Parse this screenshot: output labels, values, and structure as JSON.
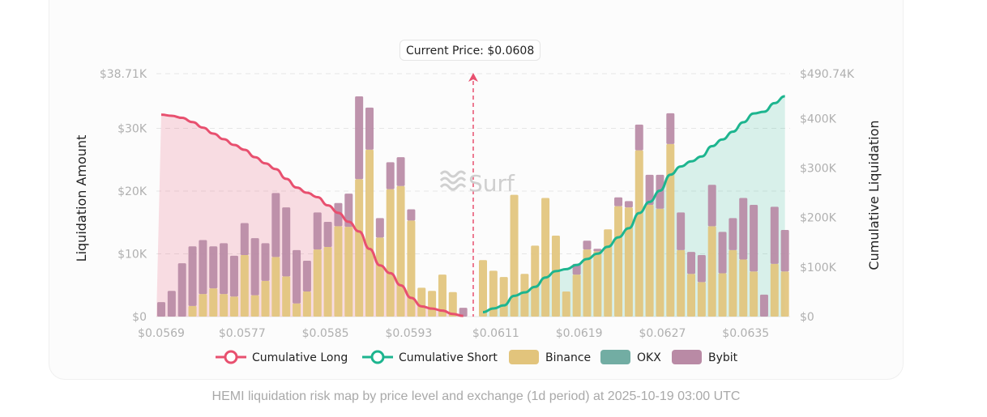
{
  "chart_data": {
    "type": "bar",
    "title": "",
    "caption": "HEMI liquidation risk map by price level and exchange (1d period) at 2025-10-19 03:00 UTC",
    "xlabel": "",
    "ylabel": "Liquidation Amount",
    "y2label": "Cumulative Liquidation",
    "ylim": [
      0,
      38710
    ],
    "y2lim": [
      0,
      490740
    ],
    "y_ticks": [
      "$0",
      "$10K",
      "$20K",
      "$30K",
      "$38.71K"
    ],
    "y_tick_values": [
      0,
      10000,
      20000,
      30000,
      38710
    ],
    "y2_ticks": [
      "$0",
      "$100K",
      "$200K",
      "$300K",
      "$400K",
      "$490.74K"
    ],
    "y2_tick_values": [
      0,
      100000,
      200000,
      300000,
      400000,
      490740
    ],
    "x_ticks": [
      "$0.0569",
      "$0.0577",
      "$0.0585",
      "$0.0593",
      "$0.0611",
      "$0.0619",
      "$0.0627",
      "$0.0635"
    ],
    "current_price_label": "Current Price: $0.0608",
    "current_price": 0.0608,
    "watermark": "Surf",
    "legend": [
      {
        "name": "Cumulative Long",
        "type": "line",
        "color": "#e8506f"
      },
      {
        "name": "Cumulative Short",
        "type": "line",
        "color": "#1db58f"
      },
      {
        "name": "Binance",
        "type": "bar",
        "color": "#e2c47c"
      },
      {
        "name": "OKX",
        "type": "bar",
        "color": "#72ada3"
      },
      {
        "name": "Bybit",
        "type": "bar",
        "color": "#b98aa5"
      }
    ],
    "long_side": {
      "binance": [
        0,
        0,
        0,
        1.7,
        3.6,
        4.5,
        3.6,
        3.2,
        9.8,
        3.4,
        5.7,
        9.5,
        6.4,
        2.1,
        4.0,
        10.7,
        11.1,
        14.4,
        14.3,
        21.9,
        26.6,
        12.6,
        20.3,
        20.8,
        15.3,
        4.6,
        4.1,
        6.7,
        3.9,
        0
      ],
      "okx": [
        0,
        0,
        0,
        0,
        0,
        0,
        0,
        0,
        0,
        0,
        0,
        0,
        0,
        0,
        0,
        0,
        0,
        0,
        0,
        0,
        0,
        0,
        0,
        0,
        0,
        0,
        0,
        0,
        0,
        0
      ],
      "bybit": [
        2.3,
        4.1,
        8.5,
        9.5,
        8.6,
        6.7,
        8.1,
        6.5,
        5.1,
        9.1,
        6.0,
        10.2,
        11.0,
        8.5,
        4.9,
        5.9,
        4.0,
        3.7,
        5.3,
        13.2,
        6.7,
        3.1,
        4.3,
        4.6,
        1.8,
        0,
        0,
        0,
        0,
        1.4
      ]
    },
    "short_side": {
      "binance": [
        9.0,
        7.3,
        6.3,
        19.4,
        6.8,
        11.3,
        18.9,
        12.9,
        4.0,
        6.7,
        10.7,
        10.4,
        13.9,
        17.6,
        17.4,
        26.5,
        17.8,
        17.2,
        27.5,
        10.6,
        6.8,
        5.5,
        14.4,
        6.9,
        10.6,
        9.1,
        7.2,
        0,
        8.4,
        7.2
      ],
      "okx": [
        0,
        0,
        0,
        0,
        0,
        0,
        0,
        0,
        0,
        0,
        0,
        0,
        0,
        0,
        0,
        0,
        0,
        0,
        0,
        0,
        0,
        0,
        0,
        0,
        0,
        0,
        0,
        0,
        0,
        0
      ],
      "bybit": [
        0,
        0,
        0,
        0,
        0,
        0,
        0,
        0,
        0,
        1.7,
        1.4,
        0.4,
        0,
        1.4,
        1.0,
        4.1,
        4.8,
        5.4,
        4.9,
        6.0,
        3.5,
        4.3,
        6.6,
        6.6,
        5.1,
        9.8,
        10.6,
        3.5,
        9.1,
        6.6
      ]
    },
    "value_unit": "thousand USD",
    "cumulative_long_total_k": 410,
    "cumulative_short_total_k": 446
  }
}
